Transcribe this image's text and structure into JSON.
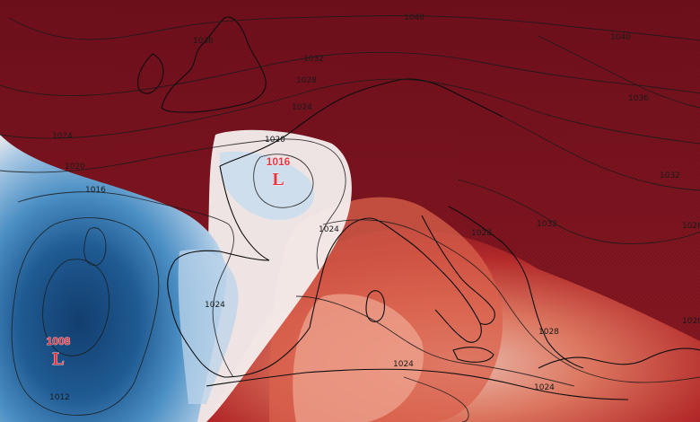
{
  "map": {
    "region": "Europe and North Africa",
    "field": "sea-level pressure isobars over temperature anomaly shading",
    "colors": {
      "warm_strong": "#7a1420",
      "warm_mid": "#b52a2a",
      "warm_light": "#e07a62",
      "neutral": "#f4efee",
      "cool_light": "#a8c8e4",
      "cool_mid": "#4b8fc4",
      "cool_strong": "#123e6e",
      "isobar": "#1a1a1a",
      "pressure_center": "#e8343f"
    },
    "pressure_centers": [
      {
        "type": "L",
        "value": "1016",
        "location": "western France"
      },
      {
        "type": "L",
        "value": "1008",
        "location": "Atlantic west of Iberia"
      }
    ],
    "isobar_labels": [
      "1040",
      "1036",
      "1032",
      "1028",
      "1024",
      "1020",
      "1016",
      "1012",
      "1024",
      "1020",
      "1024",
      "1028",
      "1024",
      "1032",
      "1028",
      "1040",
      "1036",
      "1032",
      "1028",
      "1024",
      "1024",
      "1020",
      "1024",
      "1020",
      "1012"
    ]
  }
}
